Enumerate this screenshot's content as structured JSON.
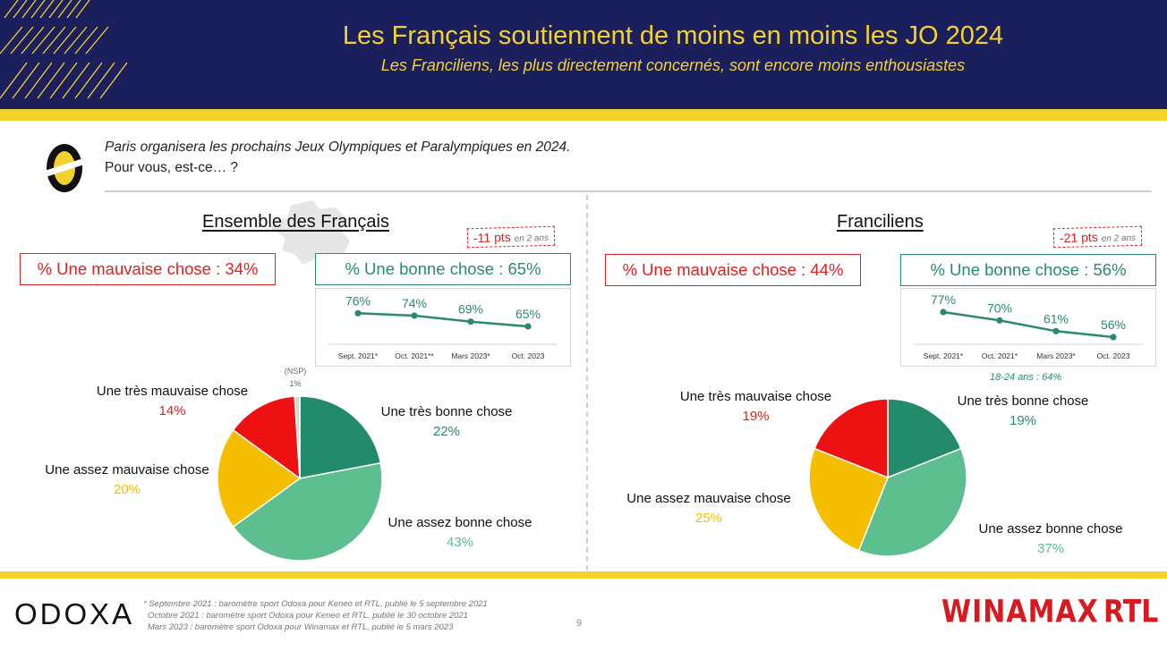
{
  "header": {
    "title": "Les Français soutiennent de moins en moins les JO 2024",
    "subtitle": "Les Franciliens, les plus directement concernés, sont encore moins enthousiastes"
  },
  "question": {
    "line1": "Paris organisera les prochains Jeux Olympiques et Paralympiques en 2024.",
    "line2": "Pour vous, est-ce… ?"
  },
  "colors": {
    "header_bg": "#1b1f5c",
    "accent_yellow": "#f4d22e",
    "bad_red": "#e02020",
    "good_green": "#2a8a6c",
    "very_good": "#248a6c",
    "fairly_good": "#5dbf8f",
    "fairly_bad": "#f5bf00",
    "very_bad": "#ee1111"
  },
  "left": {
    "title": "Ensemble des Français",
    "delta_main": "-11 pts",
    "delta_small": "en 2 ans",
    "bad_box": "% Une mauvaise chose : 34%",
    "good_box": "% Une bonne chose : 65%",
    "labels": {
      "very_bad": "Une très mauvaise chose",
      "very_bad_pct": "14%",
      "fairly_bad": "Une assez mauvaise chose",
      "fairly_bad_pct": "20%",
      "very_good": "Une très bonne chose",
      "very_good_pct": "22%",
      "fairly_good": "Une assez bonne chose",
      "fairly_good_pct": "43%",
      "nsp": "(NSP)",
      "nsp_pct": "1%"
    }
  },
  "right": {
    "title": "Franciliens",
    "delta_main": "-21 pts",
    "delta_small": "en 2 ans",
    "bad_box": "% Une mauvaise chose : 44%",
    "good_box": "% Une bonne chose : 56%",
    "note": "18-24 ans : 64%",
    "labels": {
      "very_bad": "Une très mauvaise chose",
      "very_bad_pct": "19%",
      "fairly_bad": "Une assez mauvaise chose",
      "fairly_bad_pct": "25%",
      "very_good": "Une très bonne chose",
      "very_good_pct": "19%",
      "fairly_good": "Une assez bonne chose",
      "fairly_good_pct": "37%"
    }
  },
  "chart_data": [
    {
      "type": "line",
      "title": "",
      "x": [
        "Sept. 2021*",
        "Oct. 2021**",
        "Mars 2023*",
        "Oct. 2023"
      ],
      "series": [
        {
          "values": [
            76,
            74,
            69,
            65
          ]
        }
      ],
      "value_labels": [
        "76%",
        "74%",
        "69%",
        "65%"
      ]
    },
    {
      "type": "line",
      "title": "",
      "x": [
        "Sept. 2021*",
        "Oct. 2021*",
        "Mars 2023*",
        "Oct. 2023"
      ],
      "series": [
        {
          "values": [
            77,
            70,
            61,
            56
          ]
        }
      ],
      "value_labels": [
        "77%",
        "70%",
        "61%",
        "56%"
      ]
    },
    {
      "type": "pie",
      "title": "Ensemble des Français",
      "categories": [
        "Une très bonne chose",
        "Une assez bonne chose",
        "Une assez mauvaise chose",
        "Une très mauvaise chose",
        "(NSP)"
      ],
      "values": [
        22,
        43,
        20,
        14,
        1
      ]
    },
    {
      "type": "pie",
      "title": "Franciliens",
      "categories": [
        "Une très bonne chose",
        "Une assez bonne chose",
        "Une assez mauvaise chose",
        "Une très mauvaise chose"
      ],
      "values": [
        19,
        37,
        25,
        19
      ]
    }
  ],
  "footer": {
    "brand": "ODOXA",
    "footnote1": "* Septembre 2021 : baromètre sport Odoxa pour Keneo et RTL, publié le 5 septembre 2021",
    "footnote2": "Octobre 2021 : baromètre sport Odoxa pour Keneo et RTL, publié le 30 octobre 2021",
    "footnote3": "Mars 2023 : baromètre sport Odoxa pour Winamax et RTL, publié le 5 mars 2023",
    "page": "9",
    "partner1": "WINAMAX",
    "partner2": "RTL"
  }
}
